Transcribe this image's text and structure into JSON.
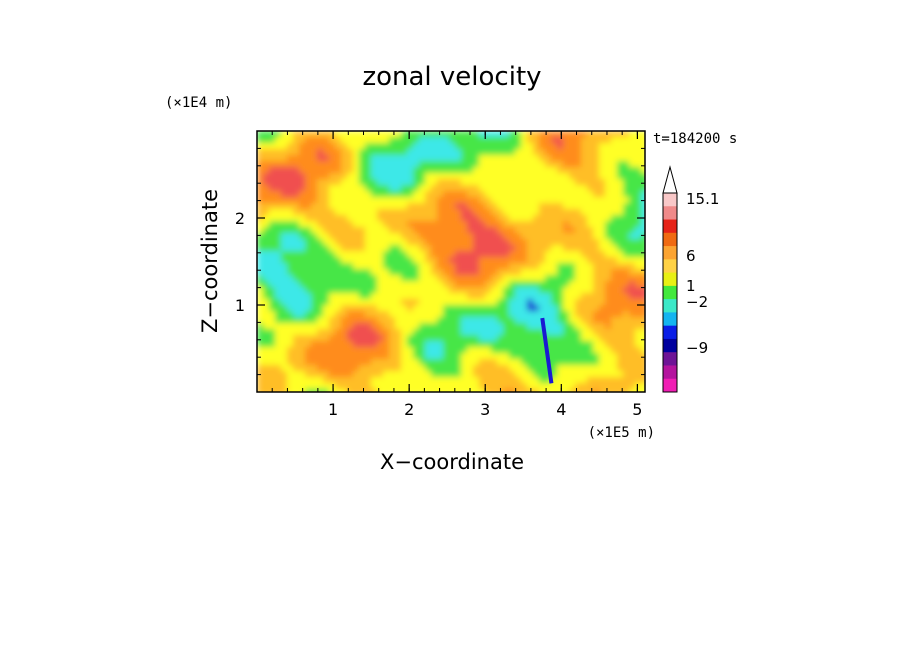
{
  "chart_data": {
    "type": "heatmap",
    "title": "zonal velocity",
    "xlabel": "X−coordinate",
    "ylabel": "Z−coordinate",
    "x_scale_label": "(×1E5 m)",
    "y_scale_label": "(×1E4 m)",
    "time_label": "t=184200 s",
    "xlim": [
      0,
      5.1
    ],
    "ylim": [
      0,
      3.0
    ],
    "x_ticks": [
      "1",
      "2",
      "3",
      "4",
      "5"
    ],
    "y_ticks": [
      "1",
      "2"
    ],
    "x_tick_values": [
      1,
      2,
      3,
      4,
      5
    ],
    "y_tick_values": [
      1,
      2
    ],
    "grid": false,
    "colorbar": {
      "labels": [
        "15.1",
        "6",
        "1",
        "−2",
        "−9"
      ],
      "label_values": [
        15.1,
        6,
        1,
        -2,
        -9
      ],
      "colors_top_to_bottom": [
        "#f9c8c8",
        "#f08a8a",
        "#e62318",
        "#f06a12",
        "#fca432",
        "#ffd246",
        "#e8f014",
        "#42e83c",
        "#3ce8c8",
        "#14b4f0",
        "#0a1ee6",
        "#00009e",
        "#6e1496",
        "#b4149e",
        "#f01eb4"
      ]
    },
    "field_note_colors": {
      "strong_negative": "#1a1ad2",
      "weak_negative": "#3ce8e8",
      "near_zero": "#46e646",
      "weak_positive": "#ffff28",
      "moderate_positive": "#ffbe28",
      "strong_positive": "#ff8c1e",
      "very_strong_positive": "#f05050"
    }
  }
}
